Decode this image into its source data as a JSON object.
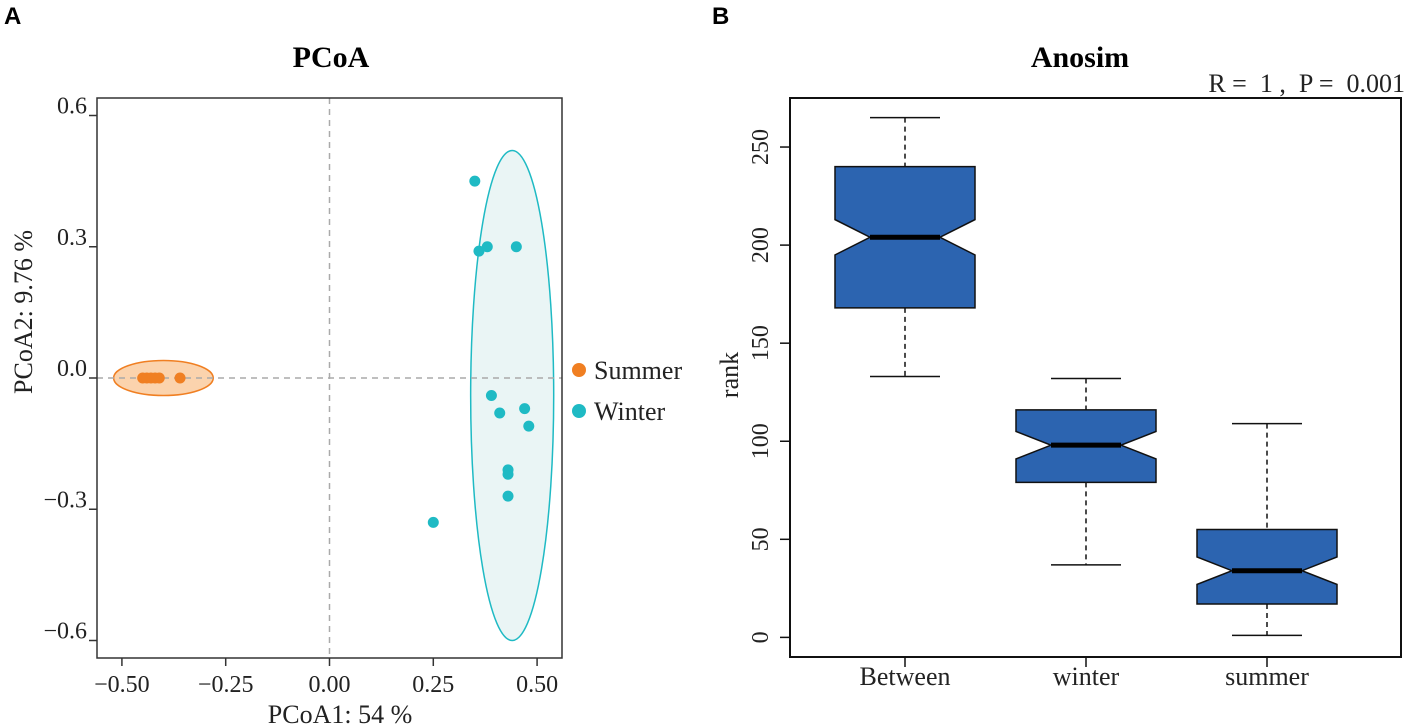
{
  "chart_data": [
    {
      "panel": "A",
      "type": "scatter",
      "title": "PCoA",
      "xlabel": "PCoA1:  54 %",
      "ylabel": "PCoA2:  9.76 %",
      "xlim": [
        -0.56,
        0.56
      ],
      "ylim": [
        -0.64,
        0.64
      ],
      "xticks": [
        -0.5,
        -0.25,
        0.0,
        0.25,
        0.5
      ],
      "xtick_labels": [
        "−0.50",
        "−0.25",
        "0.00",
        "0.25",
        "0.50"
      ],
      "yticks": [
        0.6,
        0.3,
        0.0,
        -0.3,
        -0.6
      ],
      "ytick_labels": [
        "0.6",
        "0.3",
        "0.0",
        "−0.3",
        "−0.6"
      ],
      "reference_lines": {
        "x": 0,
        "y": 0
      },
      "series": [
        {
          "name": "Summer",
          "color": "#f07f22",
          "ellipse_fill": "#fbd3ad",
          "x": [
            -0.45,
            -0.44,
            -0.43,
            -0.42,
            -0.41,
            -0.36
          ],
          "y": [
            0.0,
            0.0,
            0.0,
            0.0,
            0.0,
            0.0
          ],
          "ellipse": {
            "cx": -0.4,
            "cy": 0.0,
            "rx": 0.12,
            "ry": 0.04
          }
        },
        {
          "name": "Winter",
          "color": "#1fbac4",
          "ellipse_fill": "#eaf5f5",
          "x": [
            0.35,
            0.36,
            0.38,
            0.45,
            0.39,
            0.41,
            0.47,
            0.48,
            0.43,
            0.43,
            0.43,
            0.25
          ],
          "y": [
            0.45,
            0.29,
            0.3,
            0.3,
            -0.04,
            -0.08,
            -0.07,
            -0.11,
            -0.21,
            -0.22,
            -0.27,
            -0.33
          ],
          "ellipse": {
            "cx": 0.44,
            "cy": -0.04,
            "rx": 0.1,
            "ry": 0.56
          }
        }
      ],
      "legend": [
        {
          "label": "Summer",
          "color": "#f07f22"
        },
        {
          "label": "Winter",
          "color": "#1fbac4"
        }
      ]
    },
    {
      "panel": "B",
      "type": "box",
      "title": "Anosim",
      "annotation": "R =  1 ,  P =  0.001",
      "ylabel": "rank",
      "xlabel": "",
      "ylim": [
        -10,
        275
      ],
      "yticks": [
        0,
        50,
        100,
        150,
        200,
        250
      ],
      "ytick_labels": [
        "0",
        "50",
        "100",
        "150",
        "200",
        "250"
      ],
      "box_color": "#2c64b0",
      "notched": true,
      "categories": [
        "Between",
        "winter",
        "summer"
      ],
      "boxes": [
        {
          "label": "Between",
          "min": 133,
          "q1": 168,
          "median": 204,
          "q3": 240,
          "max": 265,
          "notch_low": 195,
          "notch_high": 213
        },
        {
          "label": "winter",
          "min": 37,
          "q1": 79,
          "median": 98,
          "q3": 116,
          "max": 132,
          "notch_low": 91,
          "notch_high": 105
        },
        {
          "label": "summer",
          "min": 1,
          "q1": 17,
          "median": 34,
          "q3": 55,
          "max": 109,
          "notch_low": 27,
          "notch_high": 41
        }
      ]
    }
  ]
}
